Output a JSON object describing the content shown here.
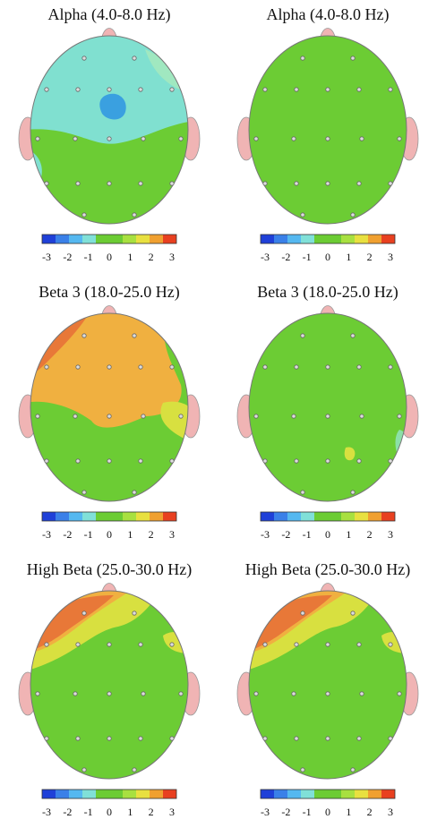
{
  "panels": [
    {
      "title": "Alpha (4.0-8.0 Hz)",
      "colorbar_ticks": [
        -3,
        -2,
        -1,
        0,
        1,
        2,
        3
      ]
    },
    {
      "title": "Alpha (4.0-8.0 Hz)",
      "colorbar_ticks": [
        -3,
        -2,
        -1,
        0,
        1,
        2,
        3
      ]
    },
    {
      "title": "Beta 3 (18.0-25.0 Hz)",
      "colorbar_ticks": [
        -3,
        -2,
        -1,
        0,
        1,
        2,
        3
      ]
    },
    {
      "title": "Beta 3 (18.0-25.0 Hz)",
      "colorbar_ticks": [
        -3,
        -2,
        -1,
        0,
        1,
        2,
        3
      ]
    },
    {
      "title": "High Beta (25.0-30.0 Hz)",
      "colorbar_ticks": [
        -3,
        -2,
        -1,
        0,
        1,
        2,
        3
      ]
    },
    {
      "title": "High Beta (25.0-30.0 Hz)",
      "colorbar_ticks": [
        -3,
        -2,
        -1,
        0,
        1,
        2,
        3
      ]
    }
  ]
}
